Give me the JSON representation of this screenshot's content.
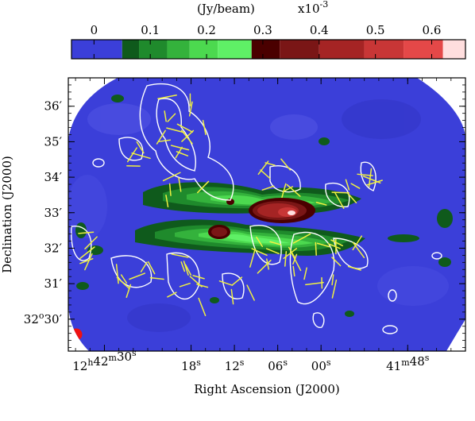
{
  "chart_data": {
    "type": "heatmap",
    "colorbar": {
      "label": "(Jy/beam)",
      "multiplier": "x10",
      "multiplier_exponent": "-3",
      "tick_labels": [
        "0",
        "0.1",
        "0.2",
        "0.3",
        "0.4",
        "0.5",
        "0.6"
      ],
      "tick_values": [
        0,
        0.1,
        0.2,
        0.3,
        0.4,
        0.5,
        0.6
      ],
      "range": [
        -0.04,
        0.66
      ],
      "bands": [
        {
          "from": -0.04,
          "to": 0.05,
          "color": "#3b3fd9"
        },
        {
          "from": 0.05,
          "to": 0.08,
          "color": "#0f5a1c"
        },
        {
          "from": 0.08,
          "to": 0.13,
          "color": "#1f8a2c"
        },
        {
          "from": 0.13,
          "to": 0.17,
          "color": "#34b23c"
        },
        {
          "from": 0.17,
          "to": 0.22,
          "color": "#4cd94f"
        },
        {
          "from": 0.22,
          "to": 0.28,
          "color": "#5ff066"
        },
        {
          "from": 0.28,
          "to": 0.33,
          "color": "#4a0000"
        },
        {
          "from": 0.33,
          "to": 0.4,
          "color": "#7a1616"
        },
        {
          "from": 0.4,
          "to": 0.48,
          "color": "#a52424"
        },
        {
          "from": 0.48,
          "to": 0.55,
          "color": "#c83636"
        },
        {
          "from": 0.55,
          "to": 0.62,
          "color": "#e44848"
        },
        {
          "from": 0.62,
          "to": 0.66,
          "color": "#ffdede"
        }
      ]
    },
    "xlabel": "Right Ascension (J2000)",
    "ylabel": "Declination (J2000)",
    "x_ticks": [
      {
        "h": "12",
        "m": "42",
        "s": "30",
        "label_mode": "hms",
        "value_sec": 30
      },
      {
        "s": "18",
        "label_mode": "s",
        "value_sec": 18
      },
      {
        "s": "12",
        "label_mode": "s",
        "value_sec": 12
      },
      {
        "s": "06",
        "label_mode": "s",
        "value_sec": 6
      },
      {
        "s": "00",
        "label_mode": "s",
        "value_sec": 0
      },
      {
        "m": "41",
        "s": "48",
        "label_mode": "ms",
        "value_sec": -12
      }
    ],
    "x_range_sec": [
      35,
      -20
    ],
    "y_ticks": [
      {
        "label": "36′",
        "value_arcmin": 36
      },
      {
        "label": "35′",
        "value_arcmin": 35
      },
      {
        "label": "34′",
        "value_arcmin": 34
      },
      {
        "label": "33′",
        "value_arcmin": 33
      },
      {
        "label": "32′",
        "value_arcmin": 32
      },
      {
        "label": "31′",
        "value_arcmin": 31
      },
      {
        "deg": "32",
        "min": "30",
        "label_mode": "dm",
        "value_arcmin": 30
      }
    ],
    "y_range_arcmin": [
      29.1,
      36.8
    ],
    "background_color": "#3b3fd9",
    "contour_color": "#ffffff",
    "vector_color": "#f0f040",
    "beam_color": "#ee1111",
    "grid": false
  }
}
